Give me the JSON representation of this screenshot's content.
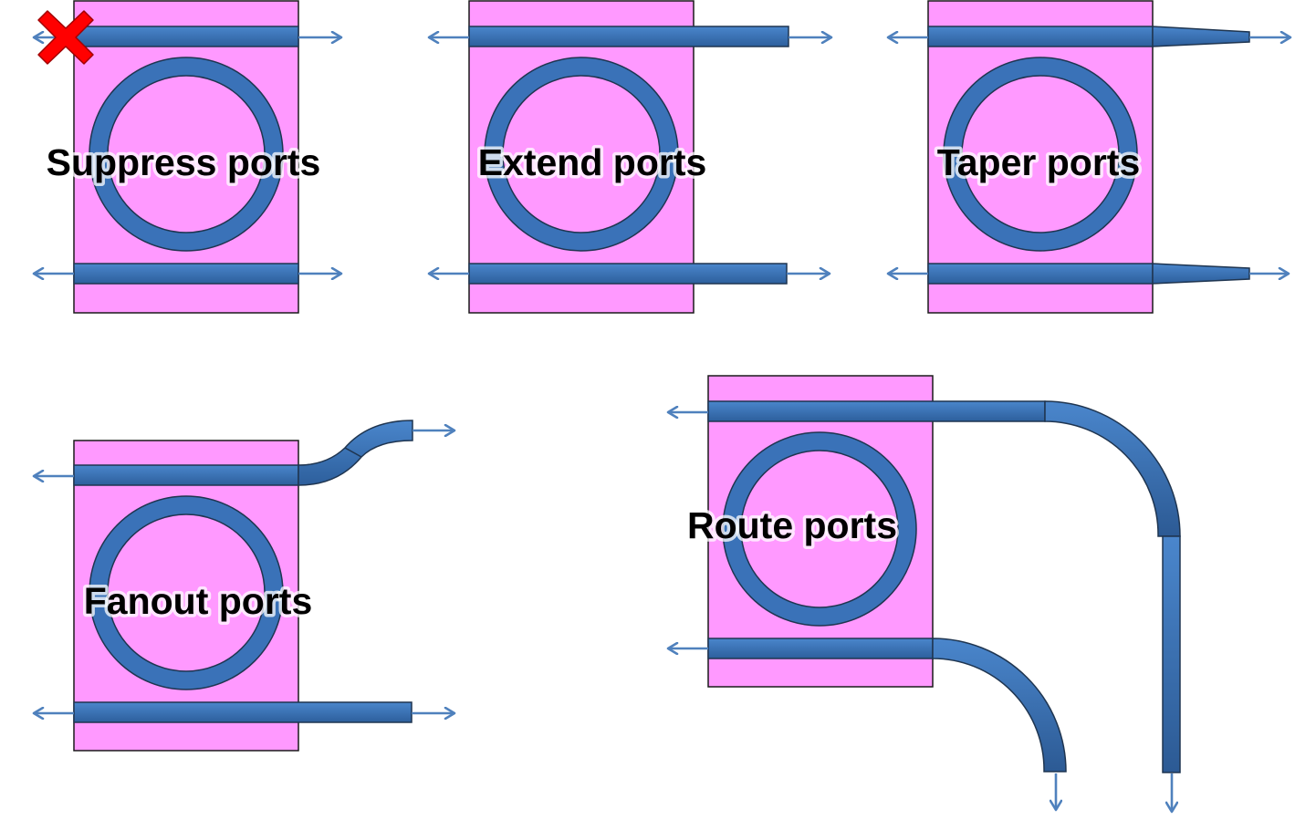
{
  "colors": {
    "cell_fill": "#ff99ff",
    "waveguide_fill": "#3a72b8",
    "waveguide_stroke": "#1f3550",
    "arrow": "#4f81bd",
    "suppress_marker": "#ff0000"
  },
  "icons": {
    "suppress_marker": "x-mark-icon",
    "port_direction": "arrow-icon"
  },
  "panels": [
    {
      "key": "suppress",
      "label": "Suppress ports"
    },
    {
      "key": "extend",
      "label": "Extend ports"
    },
    {
      "key": "taper",
      "label": "Taper ports"
    },
    {
      "key": "fanout",
      "label": "Fanout ports"
    },
    {
      "key": "route",
      "label": "Route ports"
    }
  ]
}
